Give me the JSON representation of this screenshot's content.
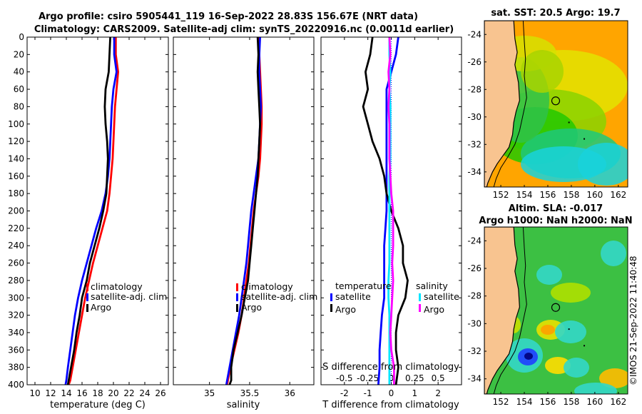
{
  "header": {
    "line1": "Argo profile: csiro 5905441_119 16-Sep-2022 28.83S 156.67E (NRT data)",
    "line2": "Climatology: CARS2009. Satellite-adj clim: synTS_20220916.nc (0.0011d earlier)"
  },
  "map_sst": {
    "title": "sat. SST: 20.5 Argo: 19.7"
  },
  "map_sla": {
    "title1": "Altim. SLA: -0.017",
    "title2": "Argo h1000: NaN h2000: NaN"
  },
  "map_axes": {
    "xticks": [
      152,
      154,
      156,
      158,
      160,
      162
    ],
    "xticklabels": [
      "152",
      "154",
      "156",
      "158",
      "160",
      "162"
    ],
    "yticks": [
      -24,
      -26,
      -28,
      -30,
      -32,
      -34
    ],
    "yticklabels": [
      "-24",
      "-26",
      "-28",
      "-30",
      "-32",
      "-34"
    ],
    "xlim": [
      150.6,
      162.8
    ],
    "ylim": [
      -35.1,
      -23.0
    ],
    "argo_location": [
      156.67,
      -28.83
    ]
  },
  "colors": {
    "climatology": "#ff0000",
    "satellite": "#0000ff",
    "argo": "#000000",
    "sat_salinity": "#00e5ff",
    "argo_salinity": "#ff00ff",
    "land": "#f8c490"
  },
  "credit": "©IMOS 21-Sep-2022 11:40:48",
  "depth_axis": {
    "ticks": [
      0,
      20,
      40,
      60,
      80,
      100,
      120,
      140,
      160,
      180,
      200,
      220,
      240,
      260,
      280,
      300,
      320,
      340,
      360,
      380,
      400
    ],
    "ticklabels": [
      "0",
      "20",
      "40",
      "60",
      "80",
      "100",
      "120",
      "140",
      "160",
      "180",
      "200",
      "220",
      "240",
      "260",
      "280",
      "300",
      "320",
      "340",
      "360",
      "380",
      "400"
    ]
  },
  "chart_data": [
    {
      "type": "line",
      "id": "temperature",
      "xlabel": "temperature (deg C)",
      "ylabel": "depth",
      "xlim": [
        9,
        27
      ],
      "ylim": [
        400,
        0
      ],
      "xticks": [
        10,
        12,
        14,
        16,
        18,
        20,
        22,
        24,
        26
      ],
      "xticklabels": [
        "10",
        "12",
        "14",
        "16",
        "18",
        "20",
        "22",
        "24",
        "26"
      ],
      "legend": {
        "position": "center-left",
        "entries": [
          "climatology",
          "satellite-adj. clim",
          "Argo"
        ]
      },
      "series": [
        {
          "name": "climatology",
          "color": "#ff0000",
          "x": [
            20.3,
            20.3,
            20.6,
            20.4,
            20.2,
            20.1,
            20.0,
            19.9,
            19.7,
            19.5,
            19.2,
            18.6,
            18.0,
            17.4,
            16.9,
            16.4,
            16.0,
            15.6,
            15.2,
            14.8,
            14.5,
            14.3
          ],
          "y": [
            0,
            20,
            40,
            60,
            80,
            100,
            120,
            140,
            160,
            180,
            200,
            220,
            240,
            260,
            280,
            300,
            320,
            340,
            360,
            380,
            395,
            400
          ]
        },
        {
          "name": "satellite-adj. clim",
          "color": "#0000ff",
          "x": [
            20.1,
            20.1,
            20.4,
            20.0,
            19.8,
            19.7,
            19.6,
            19.5,
            19.3,
            19.0,
            18.5,
            17.8,
            17.2,
            16.6,
            16.0,
            15.5,
            15.1,
            14.8,
            14.5,
            14.2,
            14.0,
            13.9
          ],
          "y": [
            0,
            20,
            40,
            60,
            80,
            100,
            120,
            140,
            160,
            180,
            200,
            220,
            240,
            260,
            280,
            300,
            320,
            340,
            360,
            380,
            395,
            400
          ]
        },
        {
          "name": "Argo",
          "color": "#000000",
          "x": [
            19.6,
            19.5,
            19.4,
            19.0,
            18.9,
            19.0,
            19.2,
            19.3,
            19.2,
            19.1,
            18.7,
            18.2,
            17.6,
            17.0,
            16.6,
            16.0,
            15.7,
            15.3,
            15.0,
            14.6,
            14.3,
            14.2
          ],
          "y": [
            0,
            20,
            40,
            60,
            80,
            100,
            120,
            140,
            160,
            180,
            200,
            220,
            240,
            260,
            280,
            300,
            320,
            340,
            360,
            380,
            395,
            400
          ]
        }
      ]
    },
    {
      "type": "line",
      "id": "salinity",
      "xlabel": "salinity",
      "ylabel": "depth",
      "xlim": [
        34.55,
        36.3
      ],
      "ylim": [
        400,
        0
      ],
      "xticks": [
        35,
        35.5,
        36
      ],
      "xticklabels": [
        "35",
        "35.5",
        "36"
      ],
      "legend": {
        "position": "center-left",
        "entries": [
          "climatology",
          "satellite-adj. clim",
          "Argo"
        ]
      },
      "series": [
        {
          "name": "climatology",
          "color": "#ff0000",
          "x": [
            35.62,
            35.62,
            35.63,
            35.64,
            35.65,
            35.65,
            35.64,
            35.63,
            35.61,
            35.58,
            35.55,
            35.53,
            35.51,
            35.49,
            35.46,
            35.43,
            35.4,
            35.36,
            35.31,
            35.26,
            35.23,
            35.22
          ],
          "y": [
            0,
            20,
            40,
            60,
            80,
            100,
            120,
            140,
            160,
            180,
            200,
            220,
            240,
            260,
            280,
            300,
            320,
            340,
            360,
            380,
            395,
            400
          ]
        },
        {
          "name": "satellite-adj. clim",
          "color": "#0000ff",
          "x": [
            35.63,
            35.62,
            35.62,
            35.63,
            35.64,
            35.63,
            35.62,
            35.61,
            35.58,
            35.55,
            35.52,
            35.5,
            35.48,
            35.46,
            35.43,
            35.4,
            35.37,
            35.33,
            35.29,
            35.25,
            35.22,
            35.21
          ],
          "y": [
            0,
            20,
            40,
            60,
            80,
            100,
            120,
            140,
            160,
            180,
            200,
            220,
            240,
            260,
            280,
            300,
            320,
            340,
            360,
            380,
            395,
            400
          ]
        },
        {
          "name": "Argo",
          "color": "#000000",
          "x": [
            35.6,
            35.61,
            35.6,
            35.61,
            35.62,
            35.63,
            35.62,
            35.61,
            35.6,
            35.58,
            35.56,
            35.54,
            35.52,
            35.5,
            35.48,
            35.44,
            35.4,
            35.35,
            35.3,
            35.27,
            35.27,
            35.25
          ],
          "y": [
            0,
            20,
            40,
            60,
            80,
            100,
            120,
            140,
            160,
            180,
            200,
            220,
            240,
            260,
            280,
            300,
            320,
            340,
            360,
            380,
            395,
            400
          ]
        }
      ]
    },
    {
      "type": "line",
      "id": "difference",
      "xlabel": "T difference from climatology",
      "x2label": "S difference from climatology",
      "ylabel": "depth",
      "xlim": [
        -3,
        3
      ],
      "ylim": [
        400,
        0
      ],
      "xticks": [
        -2,
        -1,
        0,
        1,
        2
      ],
      "xticklabels": [
        "-2",
        "-1",
        "0",
        "1",
        "2"
      ],
      "x2ticks": [
        -0.5,
        -0.25,
        0,
        0.25,
        0.5
      ],
      "x2ticklabels": [
        "-0.5",
        "-0.25",
        "0",
        "0.25",
        "0.5"
      ],
      "x2lim": [
        -0.75,
        0.75
      ],
      "legend": {
        "position": "center",
        "temperature_title": "temperature",
        "salinity_title": "salinity",
        "temperature_entries": [
          "satellite",
          "Argo"
        ],
        "salinity_entries": [
          "satellite",
          "Argo"
        ]
      },
      "series": [
        {
          "name": "temperature satellite",
          "axis": "T",
          "color": "#0000ff",
          "x": [
            0.3,
            0.2,
            0.0,
            -0.2,
            -0.2,
            -0.2,
            -0.2,
            -0.2,
            -0.2,
            -0.2,
            -0.2,
            -0.25,
            -0.3,
            -0.3,
            -0.3,
            -0.3,
            -0.4,
            -0.45,
            -0.5,
            -0.5,
            -0.55
          ],
          "y": [
            0,
            20,
            40,
            60,
            80,
            100,
            120,
            140,
            160,
            180,
            200,
            220,
            240,
            260,
            280,
            300,
            320,
            340,
            360,
            380,
            400
          ]
        },
        {
          "name": "temperature Argo",
          "axis": "T",
          "color": "#000000",
          "x": [
            -0.8,
            -0.9,
            -1.1,
            -1.0,
            -1.2,
            -1.0,
            -0.8,
            -0.5,
            -0.3,
            -0.2,
            0.0,
            0.3,
            0.5,
            0.5,
            0.7,
            0.6,
            0.3,
            0.2,
            0.2,
            0.3,
            0.2
          ],
          "y": [
            0,
            20,
            40,
            60,
            80,
            100,
            120,
            140,
            160,
            180,
            200,
            220,
            240,
            260,
            280,
            300,
            320,
            340,
            360,
            380,
            400
          ]
        },
        {
          "name": "salinity satellite",
          "axis": "S",
          "color": "#00e5ff",
          "x": [
            -0.02,
            -0.02,
            -0.01,
            -0.02,
            -0.01,
            -0.01,
            -0.01,
            -0.01,
            -0.02,
            -0.02,
            -0.02,
            -0.02,
            -0.02,
            -0.02,
            -0.03,
            -0.03,
            -0.02,
            -0.02,
            -0.02,
            -0.02,
            -0.02
          ],
          "y": [
            0,
            20,
            40,
            60,
            80,
            100,
            120,
            140,
            160,
            180,
            200,
            220,
            240,
            260,
            280,
            300,
            320,
            340,
            360,
            380,
            400
          ]
        },
        {
          "name": "salinity Argo",
          "axis": "S",
          "color": "#ff00ff",
          "x": [
            -0.02,
            -0.01,
            -0.03,
            -0.02,
            -0.03,
            -0.02,
            -0.02,
            -0.02,
            -0.01,
            0.0,
            0.02,
            0.02,
            0.02,
            0.01,
            0.02,
            0.01,
            0.0,
            -0.01,
            0.0,
            0.03,
            0.03
          ],
          "y": [
            0,
            20,
            40,
            60,
            80,
            100,
            120,
            140,
            160,
            180,
            200,
            220,
            240,
            260,
            280,
            300,
            320,
            340,
            360,
            380,
            400
          ]
        }
      ]
    }
  ]
}
